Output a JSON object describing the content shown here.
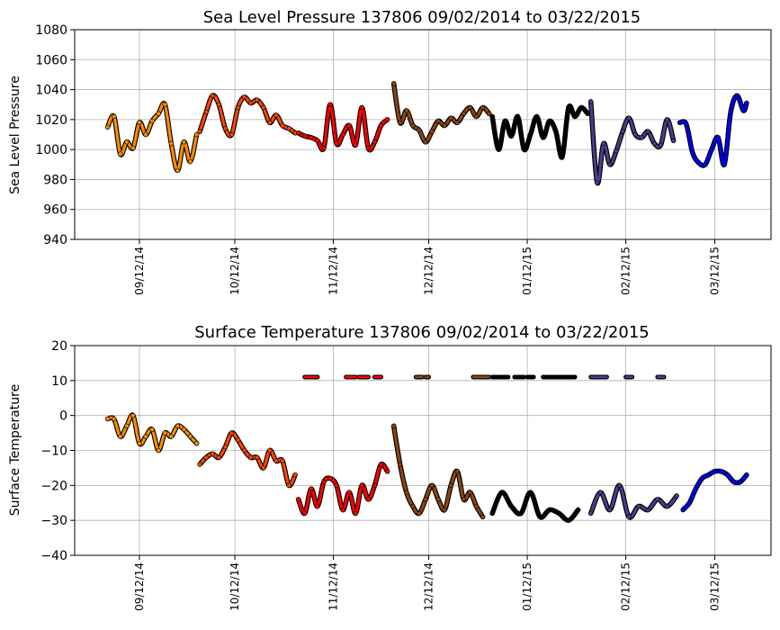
{
  "chart_data": [
    {
      "type": "scatter",
      "title": "Sea Level Pressure 137806  09/02/2014 to 03/22/2015",
      "xlabel": "",
      "ylabel": "Sea Level Pressure",
      "ylim": [
        940,
        1080
      ],
      "yticks": [
        "940",
        "960",
        "980",
        "1000",
        "1020",
        "1040",
        "1060",
        "1080"
      ],
      "xticks": [
        "09/12/14",
        "10/12/14",
        "11/12/14",
        "12/12/14",
        "01/12/15",
        "02/12/15",
        "03/12/15"
      ],
      "grid": true,
      "colors": {
        "Sep": "#ff8c00",
        "Oct": "#ff4500",
        "Nov": "#ff0000",
        "Dec": "#8b4513",
        "Jan": "#000000",
        "Feb": "#483d8b",
        "Mar": "#0000ff"
      },
      "series": [
        {
          "color_key": "Sep",
          "x": [
            "2014-09-02",
            "2014-09-04",
            "2014-09-06",
            "2014-09-08",
            "2014-09-10",
            "2014-09-12",
            "2014-09-14",
            "2014-09-16",
            "2014-09-18",
            "2014-09-20",
            "2014-09-22",
            "2014-09-24",
            "2014-09-26",
            "2014-09-28",
            "2014-09-30"
          ],
          "y": [
            1015,
            1022,
            997,
            1005,
            1001,
            1018,
            1010,
            1019,
            1024,
            1030,
            1004,
            986,
            1005,
            992,
            1010
          ]
        },
        {
          "color_key": "Oct",
          "x": [
            "2014-10-01",
            "2014-10-03",
            "2014-10-05",
            "2014-10-07",
            "2014-10-09",
            "2014-10-11",
            "2014-10-13",
            "2014-10-15",
            "2014-10-17",
            "2014-10-19",
            "2014-10-21",
            "2014-10-23",
            "2014-10-25",
            "2014-10-27",
            "2014-10-29",
            "2014-10-31"
          ],
          "y": [
            1012,
            1025,
            1036,
            1030,
            1014,
            1010,
            1028,
            1035,
            1031,
            1033,
            1028,
            1018,
            1023,
            1016,
            1014,
            1011
          ]
        },
        {
          "color_key": "Nov",
          "x": [
            "2014-11-01",
            "2014-11-03",
            "2014-11-05",
            "2014-11-07",
            "2014-11-09",
            "2014-11-11",
            "2014-11-13",
            "2014-11-15",
            "2014-11-17",
            "2014-11-19",
            "2014-11-21",
            "2014-11-23",
            "2014-11-25",
            "2014-11-27",
            "2014-11-29"
          ],
          "y": [
            1011,
            1009,
            1008,
            1006,
            1001,
            1030,
            1004,
            1010,
            1016,
            1003,
            1028,
            1001,
            1005,
            1016,
            1020
          ]
        },
        {
          "color_key": "Dec",
          "x": [
            "2014-12-01",
            "2014-12-03",
            "2014-12-05",
            "2014-12-07",
            "2014-12-09",
            "2014-12-11",
            "2014-12-13",
            "2014-12-15",
            "2014-12-17",
            "2014-12-19",
            "2014-12-21",
            "2014-12-23",
            "2014-12-25",
            "2014-12-27",
            "2014-12-29",
            "2014-12-31"
          ],
          "y": [
            1044,
            1018,
            1026,
            1016,
            1013,
            1005,
            1012,
            1019,
            1016,
            1021,
            1018,
            1024,
            1028,
            1022,
            1028,
            1024
          ]
        },
        {
          "color_key": "Jan",
          "x": [
            "2015-01-01",
            "2015-01-03",
            "2015-01-05",
            "2015-01-07",
            "2015-01-09",
            "2015-01-11",
            "2015-01-13",
            "2015-01-15",
            "2015-01-17",
            "2015-01-19",
            "2015-01-21",
            "2015-01-23",
            "2015-01-25",
            "2015-01-27",
            "2015-01-29",
            "2015-01-31"
          ],
          "y": [
            1022,
            1000,
            1019,
            1009,
            1022,
            1000,
            1010,
            1022,
            1008,
            1019,
            1012,
            995,
            1028,
            1022,
            1028,
            1024
          ]
        },
        {
          "color_key": "Feb",
          "x": [
            "2015-02-01",
            "2015-02-03",
            "2015-02-05",
            "2015-02-07",
            "2015-02-09",
            "2015-02-11",
            "2015-02-13",
            "2015-02-15",
            "2015-02-17",
            "2015-02-19",
            "2015-02-21",
            "2015-02-23",
            "2015-02-25",
            "2015-02-27"
          ],
          "y": [
            1032,
            978,
            1004,
            990,
            999,
            1012,
            1021,
            1010,
            1008,
            1012,
            1004,
            1003,
            1020,
            1006
          ]
        },
        {
          "color_key": "Mar",
          "x": [
            "2015-03-01",
            "2015-03-03",
            "2015-03-05",
            "2015-03-07",
            "2015-03-09",
            "2015-03-11",
            "2015-03-13",
            "2015-03-15",
            "2015-03-17",
            "2015-03-19",
            "2015-03-21",
            "2015-03-22"
          ],
          "y": [
            1018,
            1017,
            998,
            991,
            990,
            1000,
            1008,
            990,
            1025,
            1036,
            1026,
            1031
          ]
        }
      ]
    },
    {
      "type": "scatter",
      "title": "Surface Temperature 137806  09/02/2014 to 03/22/2015",
      "xlabel": "",
      "ylabel": "Surface Temperature",
      "ylim": [
        -40,
        20
      ],
      "yticks": [
        "−40",
        "−30",
        "−20",
        "−10",
        "0",
        "10",
        "20"
      ],
      "xticks": [
        "09/12/14",
        "10/12/14",
        "11/12/14",
        "12/12/14",
        "01/12/15",
        "02/12/15",
        "03/12/15"
      ],
      "grid": true,
      "colors": {
        "Sep": "#ff8c00",
        "Oct": "#ff4500",
        "Nov": "#ff0000",
        "Dec": "#8b4513",
        "Jan": "#000000",
        "Feb": "#483d8b",
        "Mar": "#0000ff"
      },
      "series": [
        {
          "color_key": "Sep",
          "x": [
            "2014-09-02",
            "2014-09-04",
            "2014-09-06",
            "2014-09-08",
            "2014-09-10",
            "2014-09-12",
            "2014-09-14",
            "2014-09-16",
            "2014-09-18",
            "2014-09-20",
            "2014-09-22",
            "2014-09-24",
            "2014-09-26",
            "2014-09-28",
            "2014-09-30"
          ],
          "y": [
            -1,
            -1,
            -6,
            -3,
            0,
            -8,
            -6,
            -4,
            -10,
            -5,
            -6,
            -3,
            -4,
            -6,
            -8
          ]
        },
        {
          "color_key": "Oct",
          "x": [
            "2014-10-01",
            "2014-10-03",
            "2014-10-05",
            "2014-10-07",
            "2014-10-09",
            "2014-10-11",
            "2014-10-13",
            "2014-10-15",
            "2014-10-17",
            "2014-10-19",
            "2014-10-21",
            "2014-10-23",
            "2014-10-25",
            "2014-10-27",
            "2014-10-29",
            "2014-10-31"
          ],
          "y": [
            -14,
            -12,
            -11,
            -12,
            -9,
            -5,
            -7,
            -10,
            -12,
            -12,
            -15,
            -10,
            -13,
            -13,
            -20,
            -17
          ]
        },
        {
          "color_key": "Nov",
          "x": [
            "2014-11-01",
            "2014-11-03",
            "2014-11-05",
            "2014-11-07",
            "2014-11-09",
            "2014-11-11",
            "2014-11-13",
            "2014-11-15",
            "2014-11-17",
            "2014-11-19",
            "2014-11-21",
            "2014-11-23",
            "2014-11-25",
            "2014-11-27",
            "2014-11-29"
          ],
          "y": [
            -24,
            -28,
            -21,
            -26,
            -19,
            -18,
            -20,
            -27,
            -22,
            -28,
            -20,
            -24,
            -20,
            -14,
            -16
          ]
        },
        {
          "color_key": "Dec",
          "x": [
            "2014-12-01",
            "2014-12-03",
            "2014-12-05",
            "2014-12-07",
            "2014-12-09",
            "2014-12-11",
            "2014-12-13",
            "2014-12-15",
            "2014-12-17",
            "2014-12-19",
            "2014-12-21",
            "2014-12-23",
            "2014-12-25",
            "2014-12-27",
            "2014-12-29"
          ],
          "y": [
            -3,
            -14,
            -22,
            -26,
            -28,
            -24,
            -20,
            -24,
            -27,
            -20,
            -16,
            -24,
            -22,
            -26,
            -29
          ]
        },
        {
          "color_key": "Jan",
          "x": [
            "2015-01-01",
            "2015-01-04",
            "2015-01-07",
            "2015-01-10",
            "2015-01-13",
            "2015-01-16",
            "2015-01-19",
            "2015-01-22",
            "2015-01-25",
            "2015-01-28"
          ],
          "y": [
            -28,
            -22,
            -26,
            -28,
            -22,
            -29,
            -27,
            -28,
            -30,
            -27
          ]
        },
        {
          "color_key": "Feb",
          "x": [
            "2015-02-01",
            "2015-02-04",
            "2015-02-07",
            "2015-02-10",
            "2015-02-13",
            "2015-02-16",
            "2015-02-19",
            "2015-02-22",
            "2015-02-25",
            "2015-02-28"
          ],
          "y": [
            -28,
            -22,
            -27,
            -20,
            -29,
            -26,
            -27,
            -24,
            -26,
            -23
          ]
        },
        {
          "color_key": "Mar",
          "x": [
            "2015-03-02",
            "2015-03-04",
            "2015-03-06",
            "2015-03-08",
            "2015-03-10",
            "2015-03-12",
            "2015-03-14",
            "2015-03-16",
            "2015-03-18",
            "2015-03-20",
            "2015-03-22"
          ],
          "y": [
            -27,
            -25,
            -21,
            -18,
            -17,
            -16,
            -16,
            -17,
            -19,
            -19,
            -17
          ]
        }
      ],
      "flat_segments": [
        {
          "color_key": "Nov",
          "y": 11,
          "x_start": "2014-11-03",
          "x_end": "2014-11-07"
        },
        {
          "color_key": "Nov",
          "y": 11,
          "x_start": "2014-11-16",
          "x_end": "2014-11-19"
        },
        {
          "color_key": "Nov",
          "y": 11,
          "x_start": "2014-11-20",
          "x_end": "2014-11-23"
        },
        {
          "color_key": "Nov",
          "y": 11,
          "x_start": "2014-11-25",
          "x_end": "2014-11-27"
        },
        {
          "color_key": "Dec",
          "y": 11,
          "x_start": "2014-12-08",
          "x_end": "2014-12-10"
        },
        {
          "color_key": "Dec",
          "y": 11,
          "x_start": "2014-12-11",
          "x_end": "2014-12-12"
        },
        {
          "color_key": "Dec",
          "y": 11,
          "x_start": "2014-12-26",
          "x_end": "2014-12-31"
        },
        {
          "color_key": "Jan",
          "y": 11,
          "x_start": "2015-01-01",
          "x_end": "2015-01-06"
        },
        {
          "color_key": "Jan",
          "y": 11,
          "x_start": "2015-01-08",
          "x_end": "2015-01-11"
        },
        {
          "color_key": "Jan",
          "y": 11,
          "x_start": "2015-01-12",
          "x_end": "2015-01-14"
        },
        {
          "color_key": "Jan",
          "y": 11,
          "x_start": "2015-01-17",
          "x_end": "2015-01-27"
        },
        {
          "color_key": "Feb",
          "y": 11,
          "x_start": "2015-02-01",
          "x_end": "2015-02-06"
        },
        {
          "color_key": "Feb",
          "y": 11,
          "x_start": "2015-02-12",
          "x_end": "2015-02-14"
        },
        {
          "color_key": "Feb",
          "y": 11,
          "x_start": "2015-02-22",
          "x_end": "2015-02-24"
        }
      ]
    }
  ]
}
